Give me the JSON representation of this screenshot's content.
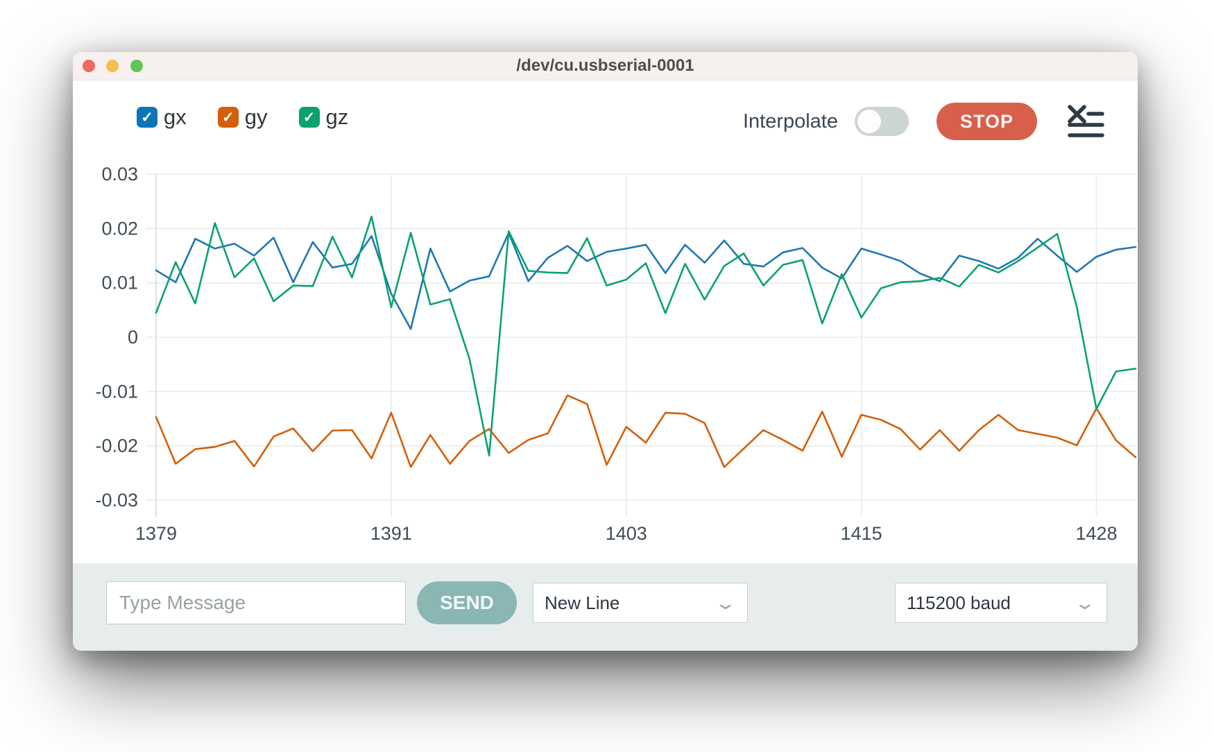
{
  "window": {
    "title": "/dev/cu.usbserial-0001",
    "traffic_lights": [
      "#ee6a5e",
      "#f5bf4f",
      "#61c454"
    ]
  },
  "icons": {
    "check": "✓",
    "chevron": "⌄"
  },
  "legend": {
    "items": [
      {
        "id": "gx",
        "label": "gx",
        "color": "#0e74b8",
        "checked": true
      },
      {
        "id": "gy",
        "label": "gy",
        "color": "#d2600a",
        "checked": true
      },
      {
        "id": "gz",
        "label": "gz",
        "color": "#0aa26e",
        "checked": true
      }
    ]
  },
  "controls": {
    "interpolate_label": "Interpolate",
    "interpolate_on": false,
    "stop_label": "STOP",
    "stop_color": "#d85f4c"
  },
  "chart_data": {
    "type": "line",
    "title": "",
    "xlabel": "",
    "ylabel": "",
    "ylim": [
      -0.03,
      0.03
    ],
    "grid": true,
    "legend_position": "top-left",
    "yticks": {
      "values": [
        0.03,
        0.02,
        0.01,
        0,
        -0.01,
        -0.02,
        -0.03
      ],
      "labels": [
        "0.03",
        "0.02",
        "0.01",
        "0",
        "-0.01",
        "-0.02",
        "-0.03"
      ]
    },
    "xticks": [
      {
        "index": 0,
        "label": "1379"
      },
      {
        "index": 12,
        "label": "1391"
      },
      {
        "index": 24,
        "label": "1403"
      },
      {
        "index": 36,
        "label": "1415"
      },
      {
        "index": 48,
        "label": "1428"
      }
    ],
    "x": [
      1379,
      1380,
      1381,
      1382,
      1383,
      1384,
      1385,
      1386,
      1387,
      1388,
      1389,
      1390,
      1391,
      1392,
      1393,
      1394,
      1395,
      1396,
      1397,
      1398,
      1399,
      1400,
      1401,
      1402,
      1403,
      1404,
      1405,
      1406,
      1407,
      1408,
      1409,
      1410,
      1411,
      1412,
      1413,
      1414,
      1415,
      1416,
      1417,
      1418,
      1419,
      1420,
      1421,
      1422,
      1423,
      1424,
      1425,
      1426,
      1427,
      1428,
      1429
    ],
    "series": [
      {
        "name": "gx",
        "color": "#1f77b4",
        "values": [
          0.0123,
          0.0101,
          0.0181,
          0.0163,
          0.0172,
          0.015,
          0.0183,
          0.0101,
          0.0175,
          0.0128,
          0.0135,
          0.0186,
          0.008,
          0.0015,
          0.0163,
          0.0084,
          0.0104,
          0.0112,
          0.0192,
          0.0103,
          0.0146,
          0.0168,
          0.014,
          0.0157,
          0.0163,
          0.017,
          0.0118,
          0.017,
          0.0137,
          0.0178,
          0.0135,
          0.013,
          0.0156,
          0.0164,
          0.0128,
          0.0108,
          0.0163,
          0.0152,
          0.014,
          0.0117,
          0.0103,
          0.015,
          0.014,
          0.0126,
          0.0146,
          0.0181,
          0.015,
          0.012,
          0.0148,
          0.0161,
          0.0166
        ]
      },
      {
        "name": "gy",
        "color": "#d2600a",
        "values": [
          -0.0147,
          -0.0233,
          -0.0206,
          -0.0202,
          -0.0191,
          -0.0238,
          -0.0183,
          -0.0168,
          -0.021,
          -0.0172,
          -0.0171,
          -0.0223,
          -0.0139,
          -0.0239,
          -0.018,
          -0.0233,
          -0.0191,
          -0.0169,
          -0.0213,
          -0.0189,
          -0.0177,
          -0.0107,
          -0.0123,
          -0.0235,
          -0.0165,
          -0.0194,
          -0.0139,
          -0.0141,
          -0.0158,
          -0.0239,
          -0.0205,
          -0.0171,
          -0.0189,
          -0.0209,
          -0.0137,
          -0.022,
          -0.0143,
          -0.0152,
          -0.0169,
          -0.0207,
          -0.0171,
          -0.0209,
          -0.0171,
          -0.0143,
          -0.0171,
          -0.0178,
          -0.0185,
          -0.0199,
          -0.0131,
          -0.019,
          -0.0221
        ]
      },
      {
        "name": "gz",
        "color": "#0aa26e",
        "values": [
          0.0045,
          0.0138,
          0.0062,
          0.021,
          0.011,
          0.0145,
          0.0066,
          0.0095,
          0.0094,
          0.0185,
          0.011,
          0.0222,
          0.0055,
          0.0192,
          0.006,
          0.007,
          -0.004,
          -0.0218,
          0.0195,
          0.0122,
          0.0119,
          0.0118,
          0.0182,
          0.0095,
          0.0106,
          0.0136,
          0.0044,
          0.0135,
          0.0069,
          0.0131,
          0.0154,
          0.0095,
          0.0133,
          0.0142,
          0.0025,
          0.0116,
          0.0036,
          0.009,
          0.0101,
          0.0103,
          0.0109,
          0.0093,
          0.0133,
          0.0119,
          0.014,
          0.0165,
          0.019,
          0.0055,
          -0.0132,
          -0.0063,
          -0.0058
        ]
      }
    ]
  },
  "bottom_bar": {
    "message_placeholder": "Type Message",
    "send_label": "SEND",
    "line_ending_value": "New Line",
    "baud_value": "115200 baud"
  }
}
